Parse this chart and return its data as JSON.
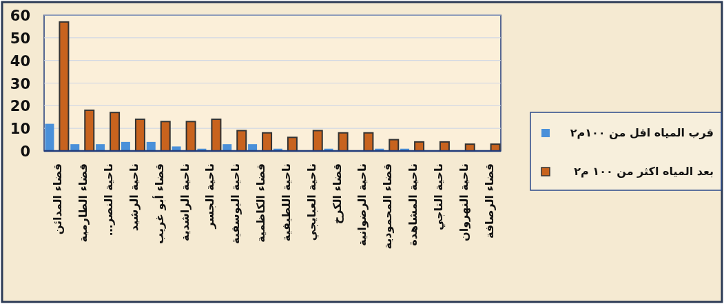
{
  "chart_data": {
    "type": "bar",
    "categories": [
      "قضاء المدائن",
      "قضاء الطارمية",
      "ناحية النصر…",
      "ناحية الرشيد",
      "قضاء أبو غريب",
      "ناحية الراشدية",
      "ناحية الجسر",
      "ناحية اليوسفية",
      "قضاء الكاظمية",
      "ناحية اللطيفية",
      "ناحية العبايجي",
      "قضاء الكرخ",
      "ناحية الرضوانية",
      "قضاء المحمودية",
      "ناحية المشاهدة",
      "ناحية التاجي",
      "ناحية النهروان",
      "قضاء الرصافة"
    ],
    "series": [
      {
        "name": "قرب المياه اقل من ١٠٠م٢",
        "color": "#4a90d9",
        "values": [
          12,
          3,
          3,
          4,
          4,
          2,
          1,
          3,
          3,
          1,
          0,
          1,
          0,
          1,
          1,
          0,
          0,
          0
        ]
      },
      {
        "name": "بعد المياه اكثر من ١٠٠ م٢",
        "color": "#c8631e",
        "values": [
          57,
          18,
          17,
          14,
          13,
          13,
          14,
          9,
          8,
          6,
          9,
          8,
          8,
          5,
          4,
          4,
          3,
          3
        ]
      }
    ],
    "ylim": [
      0,
      60
    ],
    "yticks": [
      0,
      10,
      20,
      30,
      40,
      50,
      60
    ],
    "grid": "y",
    "legend": "right"
  }
}
